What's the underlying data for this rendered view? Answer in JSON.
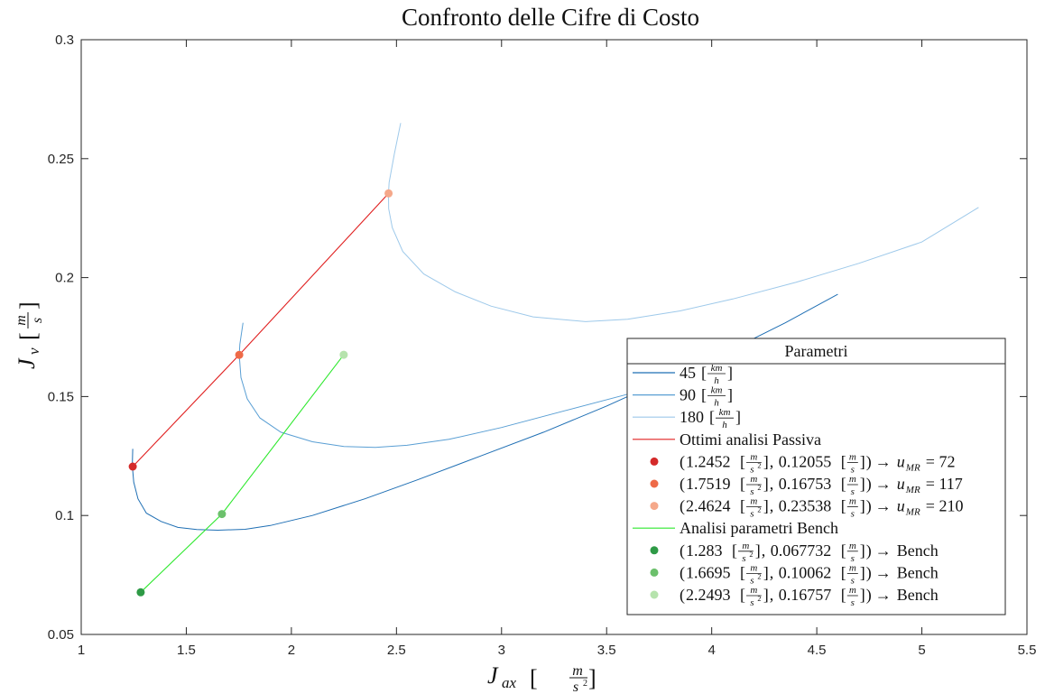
{
  "chart_data": {
    "type": "line",
    "title": "Confronto delle Cifre di Costo",
    "xlabel": {
      "main": "J",
      "sub": "ax",
      "unit_num": "m",
      "unit_den": "s",
      "unit_den_exp": "2"
    },
    "ylabel": {
      "main": "J",
      "sub": "v",
      "unit_num": "m",
      "unit_den": "s"
    },
    "xlim": [
      1,
      5.5
    ],
    "ylim": [
      0.05,
      0.3
    ],
    "xticks": [
      "1",
      "1.5",
      "2",
      "2.5",
      "3",
      "3.5",
      "4",
      "4.5",
      "5",
      "5.5"
    ],
    "yticks": [
      "0.05",
      "0.1",
      "0.15",
      "0.2",
      "0.25",
      "0.3"
    ],
    "grid": false,
    "legend": {
      "title": "Parametri",
      "placement": "bottom-right",
      "entries": [
        {
          "kind": "line",
          "color": "#1f6fb4",
          "text": "45",
          "unit": "km/h"
        },
        {
          "kind": "line",
          "color": "#5a9fd4",
          "text": "90",
          "unit": "km/h"
        },
        {
          "kind": "line",
          "color": "#9ec9ea",
          "text": "180",
          "unit": "km/h"
        },
        {
          "kind": "line",
          "color": "#e02020",
          "text": "Ottimi analisi Passiva"
        },
        {
          "kind": "dot",
          "color": "#d42a2a",
          "x": "1.2452",
          "y": "0.12055",
          "result": "u_MR = 72"
        },
        {
          "kind": "dot",
          "color": "#ee6a47",
          "x": "1.7519",
          "y": "0.16753",
          "result": "u_MR = 117"
        },
        {
          "kind": "dot",
          "color": "#f5a88a",
          "x": "2.4624",
          "y": "0.23538",
          "result": "u_MR = 210"
        },
        {
          "kind": "line",
          "color": "#2ee82e",
          "text": "Analisi parametri Bench"
        },
        {
          "kind": "dot",
          "color": "#2e9a46",
          "x": "1.283",
          "y": "0.067732",
          "result": "Bench"
        },
        {
          "kind": "dot",
          "color": "#6cc06c",
          "x": "1.6695",
          "y": "0.10062",
          "result": "Bench"
        },
        {
          "kind": "dot",
          "color": "#b6e3ad",
          "x": "2.2493",
          "y": "0.16757",
          "result": "Bench"
        }
      ]
    },
    "series": [
      {
        "name": "45 [km/h]",
        "kind": "curve",
        "color": "#1f6fb4",
        "points": [
          [
            1.245,
            0.128
          ],
          [
            1.243,
            0.121
          ],
          [
            1.25,
            0.114
          ],
          [
            1.27,
            0.107
          ],
          [
            1.31,
            0.101
          ],
          [
            1.38,
            0.0975
          ],
          [
            1.46,
            0.095
          ],
          [
            1.55,
            0.0941
          ],
          [
            1.65,
            0.0938
          ],
          [
            1.78,
            0.0942
          ],
          [
            1.9,
            0.0958
          ],
          [
            2.1,
            0.1
          ],
          [
            2.35,
            0.107
          ],
          [
            2.6,
            0.115
          ],
          [
            2.9,
            0.125
          ],
          [
            3.2,
            0.135
          ],
          [
            3.5,
            0.146
          ],
          [
            3.8,
            0.158
          ],
          [
            4.1,
            0.17
          ],
          [
            4.35,
            0.181
          ],
          [
            4.6,
            0.193
          ]
        ]
      },
      {
        "name": "90 [km/h]",
        "kind": "curve",
        "color": "#5a9fd4",
        "points": [
          [
            1.77,
            0.181
          ],
          [
            1.755,
            0.172
          ],
          [
            1.752,
            0.1675
          ],
          [
            1.76,
            0.158
          ],
          [
            1.79,
            0.149
          ],
          [
            1.85,
            0.141
          ],
          [
            1.95,
            0.135
          ],
          [
            2.1,
            0.131
          ],
          [
            2.25,
            0.129
          ],
          [
            2.4,
            0.1286
          ],
          [
            2.55,
            0.1295
          ],
          [
            2.75,
            0.132
          ],
          [
            3.0,
            0.137
          ],
          [
            3.3,
            0.144
          ],
          [
            3.6,
            0.151
          ],
          [
            3.9,
            0.159
          ],
          [
            4.1,
            0.165
          ]
        ]
      },
      {
        "name": "180 [km/h]",
        "kind": "curve",
        "color": "#9ec9ea",
        "points": [
          [
            2.52,
            0.265
          ],
          [
            2.49,
            0.252
          ],
          [
            2.465,
            0.24
          ],
          [
            2.462,
            0.2354
          ],
          [
            2.463,
            0.229
          ],
          [
            2.48,
            0.221
          ],
          [
            2.53,
            0.211
          ],
          [
            2.63,
            0.2015
          ],
          [
            2.78,
            0.194
          ],
          [
            2.95,
            0.188
          ],
          [
            3.15,
            0.1835
          ],
          [
            3.4,
            0.1815
          ],
          [
            3.6,
            0.1825
          ],
          [
            3.85,
            0.186
          ],
          [
            4.1,
            0.191
          ],
          [
            4.4,
            0.198
          ],
          [
            4.7,
            0.206
          ],
          [
            5.0,
            0.215
          ],
          [
            5.27,
            0.2295
          ]
        ]
      },
      {
        "name": "Ottimi analisi Passiva",
        "kind": "polyline",
        "color": "#e02020",
        "points": [
          [
            1.2452,
            0.12055
          ],
          [
            1.7519,
            0.16753
          ],
          [
            2.4624,
            0.23538
          ]
        ],
        "markers": [
          "#d42a2a",
          "#ee6a47",
          "#f5a88a"
        ]
      },
      {
        "name": "Analisi parametri Bench",
        "kind": "polyline",
        "color": "#2ee82e",
        "points": [
          [
            1.283,
            0.067732
          ],
          [
            1.6695,
            0.10062
          ],
          [
            2.2493,
            0.16757
          ]
        ],
        "markers": [
          "#2e9a46",
          "#6cc06c",
          "#b6e3ad"
        ]
      }
    ]
  }
}
